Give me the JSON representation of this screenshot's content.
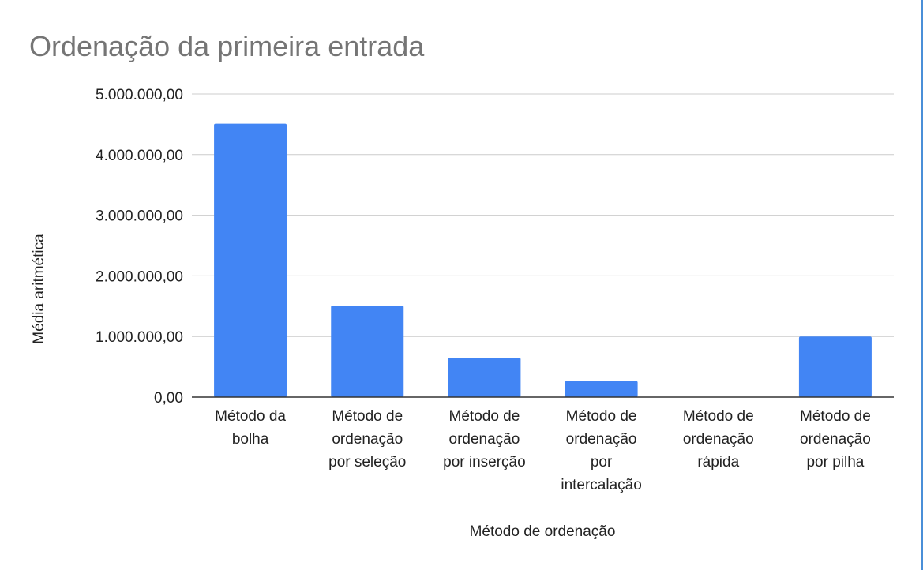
{
  "chart_data": {
    "type": "bar",
    "title": "Ordenação da primeira entrada",
    "xlabel": "Método de ordenação",
    "ylabel": "Média aritmética",
    "categories": [
      [
        "Método da",
        "bolha"
      ],
      [
        "Método de",
        "ordenação",
        "por seleção"
      ],
      [
        "Método de",
        "ordenação",
        "por inserção"
      ],
      [
        "Método de",
        "ordenação",
        "por",
        "intercalação"
      ],
      [
        "Método de",
        "ordenação",
        "rápida"
      ],
      [
        "Método de",
        "ordenação",
        "por pilha"
      ]
    ],
    "values": [
      4510000,
      1510000,
      650000,
      265000,
      0,
      1000000
    ],
    "ylim": [
      0,
      5000000
    ],
    "yticks": [
      0,
      1000000,
      2000000,
      3000000,
      4000000,
      5000000
    ],
    "ytick_labels": [
      "0,00",
      "1.000.000,00",
      "2.000.000,00",
      "3.000.000,00",
      "4.000.000,00",
      "5.000.000,00"
    ],
    "grid": true,
    "bar_color": "#4285f4",
    "grid_color": "#cccccc",
    "axis_color": "#333333"
  }
}
